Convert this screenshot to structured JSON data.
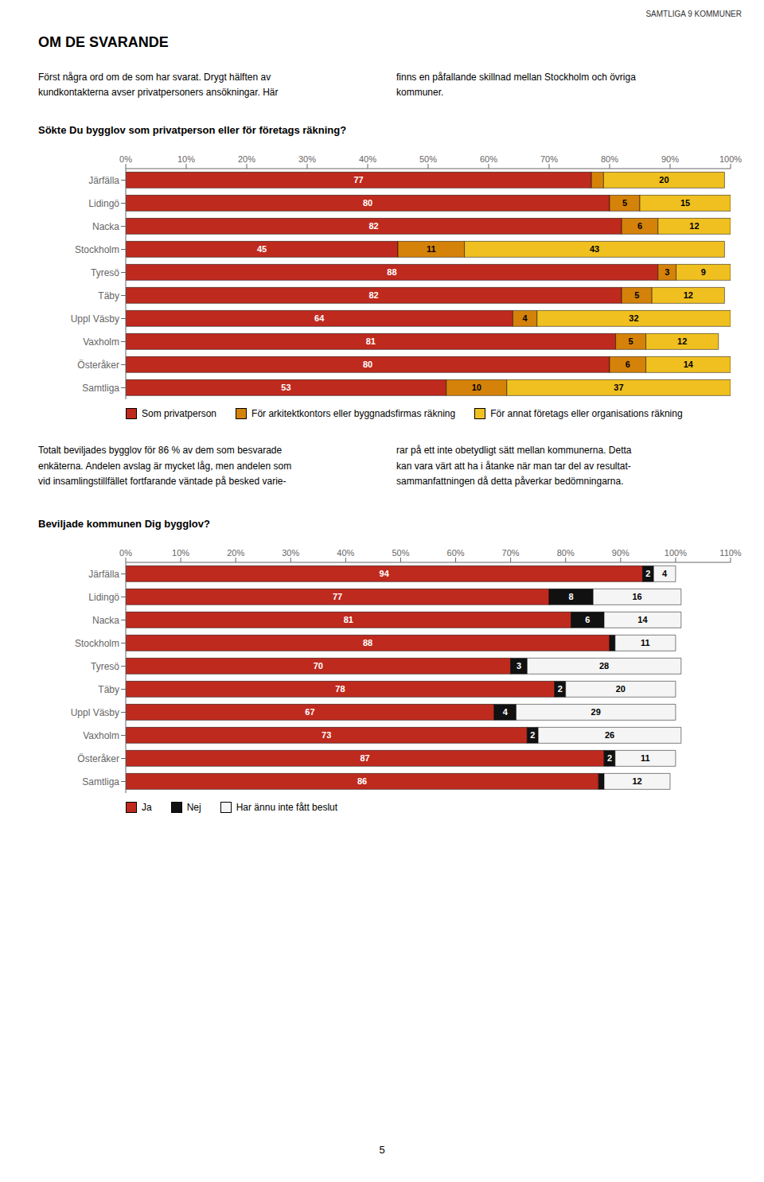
{
  "chart_data": [
    {
      "type": "bar",
      "orientation": "horizontal",
      "stacked": true,
      "data_labels": true,
      "legend": "bottom",
      "title": "Sökte Du bygglov som privatperson eller för företags räkning?",
      "annotations": [
        "SAMTLIGA 9 KOMMUNER",
        "OM DE SVARANDE",
        "Först några ord om de som har svarat. Drygt hälften av\nkundkontakterna avser privatpersoners ansökningar. Här",
        "finns en påfallande skillnad mellan Stockholm och övriga\nkommuner."
      ],
      "categories": [
        "Järfälla",
        "Lidingö",
        "Nacka",
        "Stockholm",
        "Tyresö",
        "Täby",
        "Uppl Väsby",
        "Vaxholm",
        "Österåker",
        "Samtliga"
      ],
      "series": [
        {
          "name": "Som privatperson",
          "color": "#bf2a1e",
          "values": [
            77,
            80,
            82,
            45,
            88,
            82,
            64,
            81,
            80,
            53
          ],
          "value_labels": [
            "77",
            "80",
            "82",
            "45",
            "88",
            "82",
            "64",
            "81",
            "80",
            "53"
          ]
        },
        {
          "name": "För arkitektkontors eller byggnadsfirmas räkning",
          "color": "#d4820a",
          "values": [
            2,
            5,
            6,
            11,
            3,
            5,
            4,
            5,
            6,
            10
          ],
          "value_labels": [
            null,
            "5",
            "6",
            "11",
            "3",
            "5",
            "4",
            "5",
            "6",
            "10"
          ]
        },
        {
          "name": "För annat företags eller organisations räkning",
          "color": "#f0c020",
          "values": [
            20,
            15,
            12,
            43,
            9,
            12,
            32,
            12,
            14,
            37
          ],
          "value_labels": [
            "20",
            "15",
            "12",
            "43",
            "9",
            "12",
            "32",
            "12",
            "14",
            "37"
          ]
        }
      ],
      "xlim": [
        0,
        100
      ],
      "xticks": [
        {
          "value": 0,
          "label": "0%"
        },
        {
          "value": 10,
          "label": "10%"
        },
        {
          "value": 20,
          "label": "20%"
        },
        {
          "value": 30,
          "label": "30%"
        },
        {
          "value": 40,
          "label": "40%"
        },
        {
          "value": 50,
          "label": "50%"
        },
        {
          "value": 60,
          "label": "60%"
        },
        {
          "value": 70,
          "label": "70%"
        },
        {
          "value": 80,
          "label": "80%"
        },
        {
          "value": 90,
          "label": "90%"
        },
        {
          "value": 100,
          "label": "100%"
        }
      ]
    },
    {
      "type": "bar",
      "orientation": "horizontal",
      "stacked": true,
      "data_labels": true,
      "legend": "bottom",
      "title": "Beviljade kommunen Dig bygglov?",
      "annotations": [
        "Totalt beviljades bygglov för 86 % av dem som besvarade\nenkäterna. Andelen avslag är mycket låg, men andelen som\nvid insamlingstillfället fortfarande väntade på besked varie-",
        "rar på ett inte obetydligt sätt mellan kommunerna. Detta\nkan vara värt att ha i åtanke när man tar del av resultat-\nsammanfattningen då detta påverkar bedömningarna.",
        "5"
      ],
      "categories": [
        "Järfälla",
        "Lidingö",
        "Nacka",
        "Stockholm",
        "Tyresö",
        "Täby",
        "Uppl Väsby",
        "Vaxholm",
        "Österåker",
        "Samtliga"
      ],
      "series": [
        {
          "name": "Ja",
          "color": "#bf2a1e",
          "values": [
            94,
            77,
            81,
            88,
            70,
            78,
            67,
            73,
            87,
            86
          ],
          "value_labels": [
            "94",
            "77",
            "81",
            "88",
            "70",
            "78",
            "67",
            "73",
            "87",
            "86"
          ]
        },
        {
          "name": "Nej",
          "color": "#111111",
          "values": [
            2,
            8,
            6,
            1,
            3,
            2,
            4,
            2,
            2,
            1
          ],
          "value_labels": [
            "2",
            "8",
            "6",
            null,
            "3",
            "2",
            "4",
            "2",
            "2",
            null
          ]
        },
        {
          "name": "Har ännu inte fått beslut",
          "color": "#f5f5f5",
          "values": [
            4,
            16,
            14,
            11,
            28,
            20,
            29,
            26,
            11,
            12
          ],
          "value_labels": [
            "4",
            "16",
            "14",
            "11",
            "28",
            "20",
            "29",
            "26",
            "11",
            "12"
          ]
        }
      ],
      "xlim": [
        0,
        110
      ],
      "xticks": [
        {
          "value": 0,
          "label": "0%"
        },
        {
          "value": 10,
          "label": "10%"
        },
        {
          "value": 20,
          "label": "20%"
        },
        {
          "value": 30,
          "label": "30%"
        },
        {
          "value": 40,
          "label": "40%"
        },
        {
          "value": 50,
          "label": "50%"
        },
        {
          "value": 60,
          "label": "60%"
        },
        {
          "value": 70,
          "label": "70%"
        },
        {
          "value": 80,
          "label": "80%"
        },
        {
          "value": 90,
          "label": "90%"
        },
        {
          "value": 100,
          "label": "100%"
        },
        {
          "value": 110,
          "label": "110%"
        }
      ]
    }
  ]
}
